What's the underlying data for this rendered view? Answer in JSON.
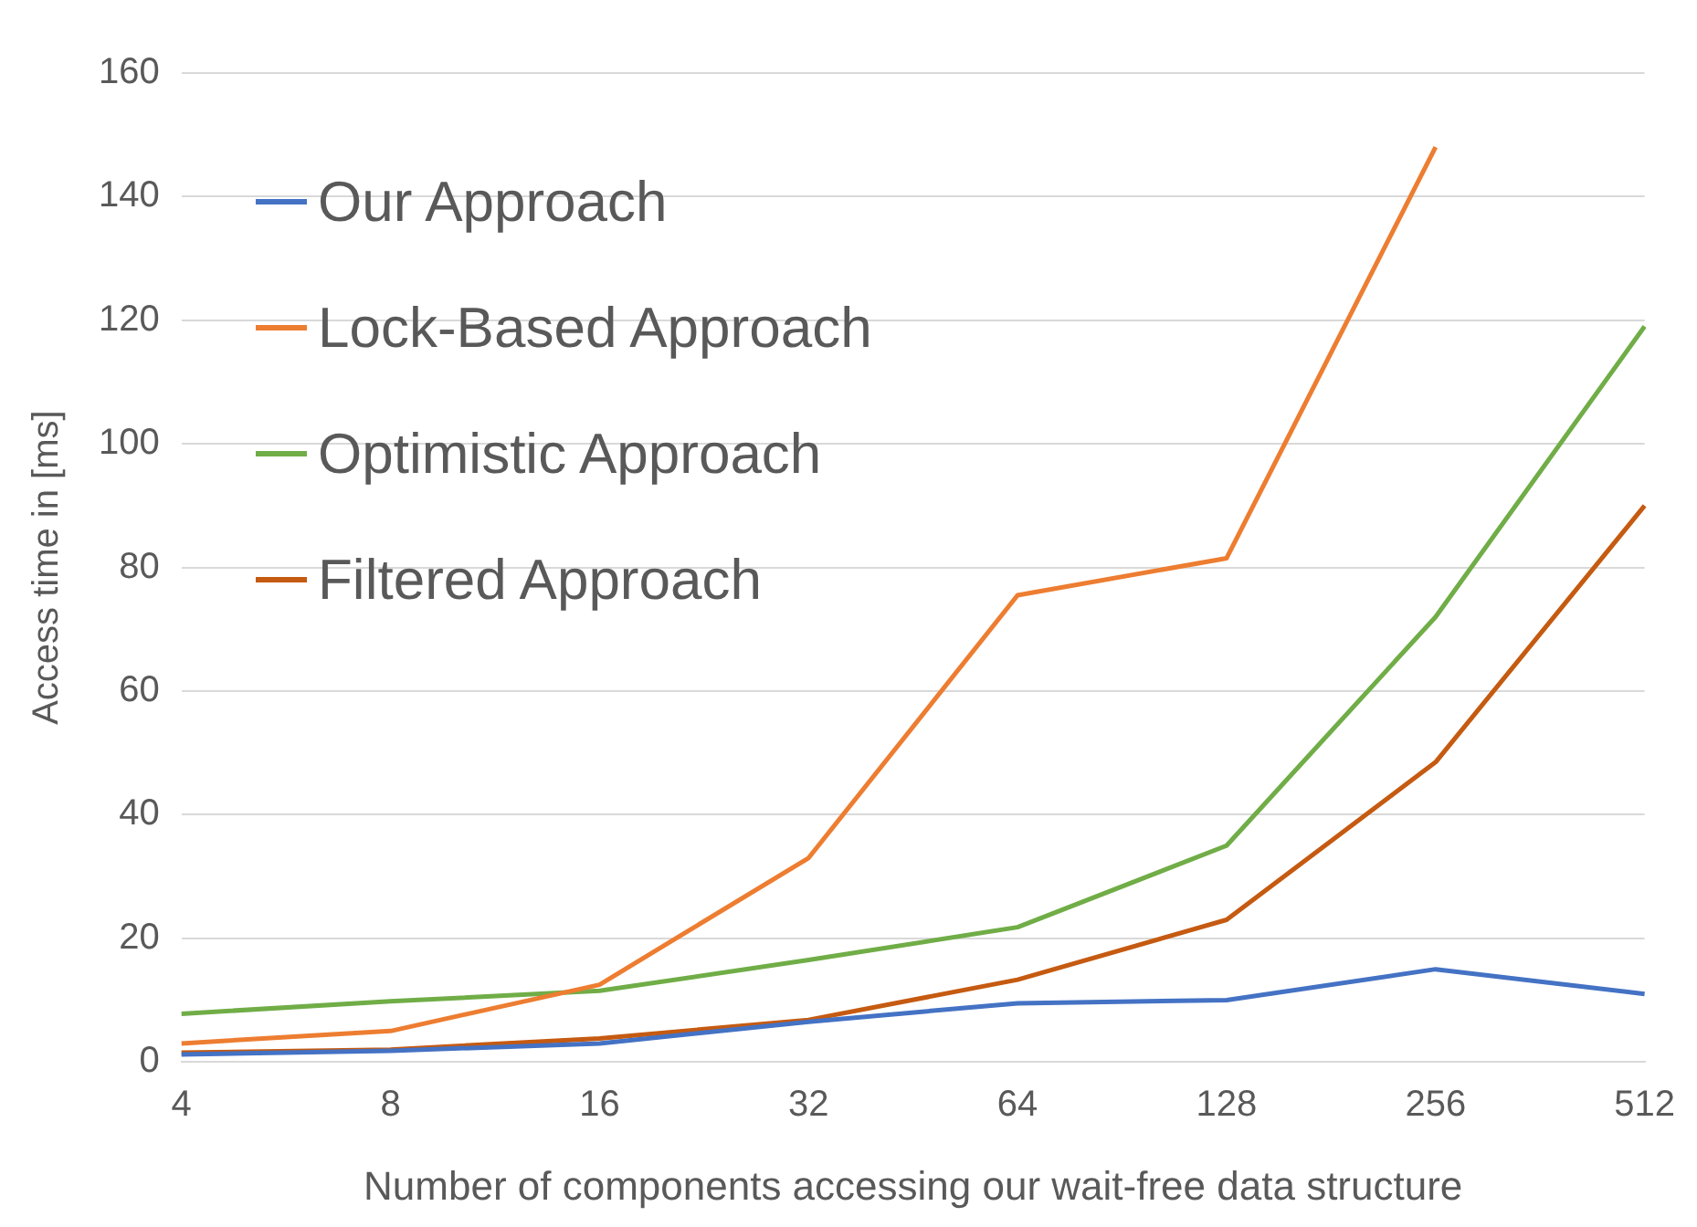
{
  "chart_data": {
    "type": "line",
    "xlabel": "Number of components accessing our wait-free data structure",
    "ylabel": "Access time in [ms]",
    "categories": [
      "4",
      "8",
      "16",
      "32",
      "64",
      "128",
      "256",
      "512"
    ],
    "series": [
      {
        "name": "Our Approach",
        "color": "#4472c4",
        "values": [
          1.2,
          1.8,
          3,
          6.5,
          9.5,
          10,
          15,
          11
        ]
      },
      {
        "name": "Lock-Based Approach",
        "color": "#ed7d31",
        "values": [
          3,
          5,
          12.5,
          33,
          75.5,
          81.5,
          148,
          null
        ]
      },
      {
        "name": "Optimistic Approach",
        "color": "#70ad47",
        "values": [
          7.8,
          9.8,
          11.5,
          16.5,
          21.8,
          35,
          72,
          119
        ]
      },
      {
        "name": "Filtered Approach",
        "color": "#c55a11",
        "values": [
          1.5,
          2,
          3.8,
          6.8,
          13.3,
          23,
          48.5,
          90
        ]
      }
    ],
    "ylim": [
      0,
      160
    ],
    "yticks": [
      0,
      20,
      40,
      60,
      80,
      100,
      120,
      140,
      160
    ],
    "grid": "y",
    "legend": "top left",
    "marker": "none",
    "line_style": "solid"
  }
}
